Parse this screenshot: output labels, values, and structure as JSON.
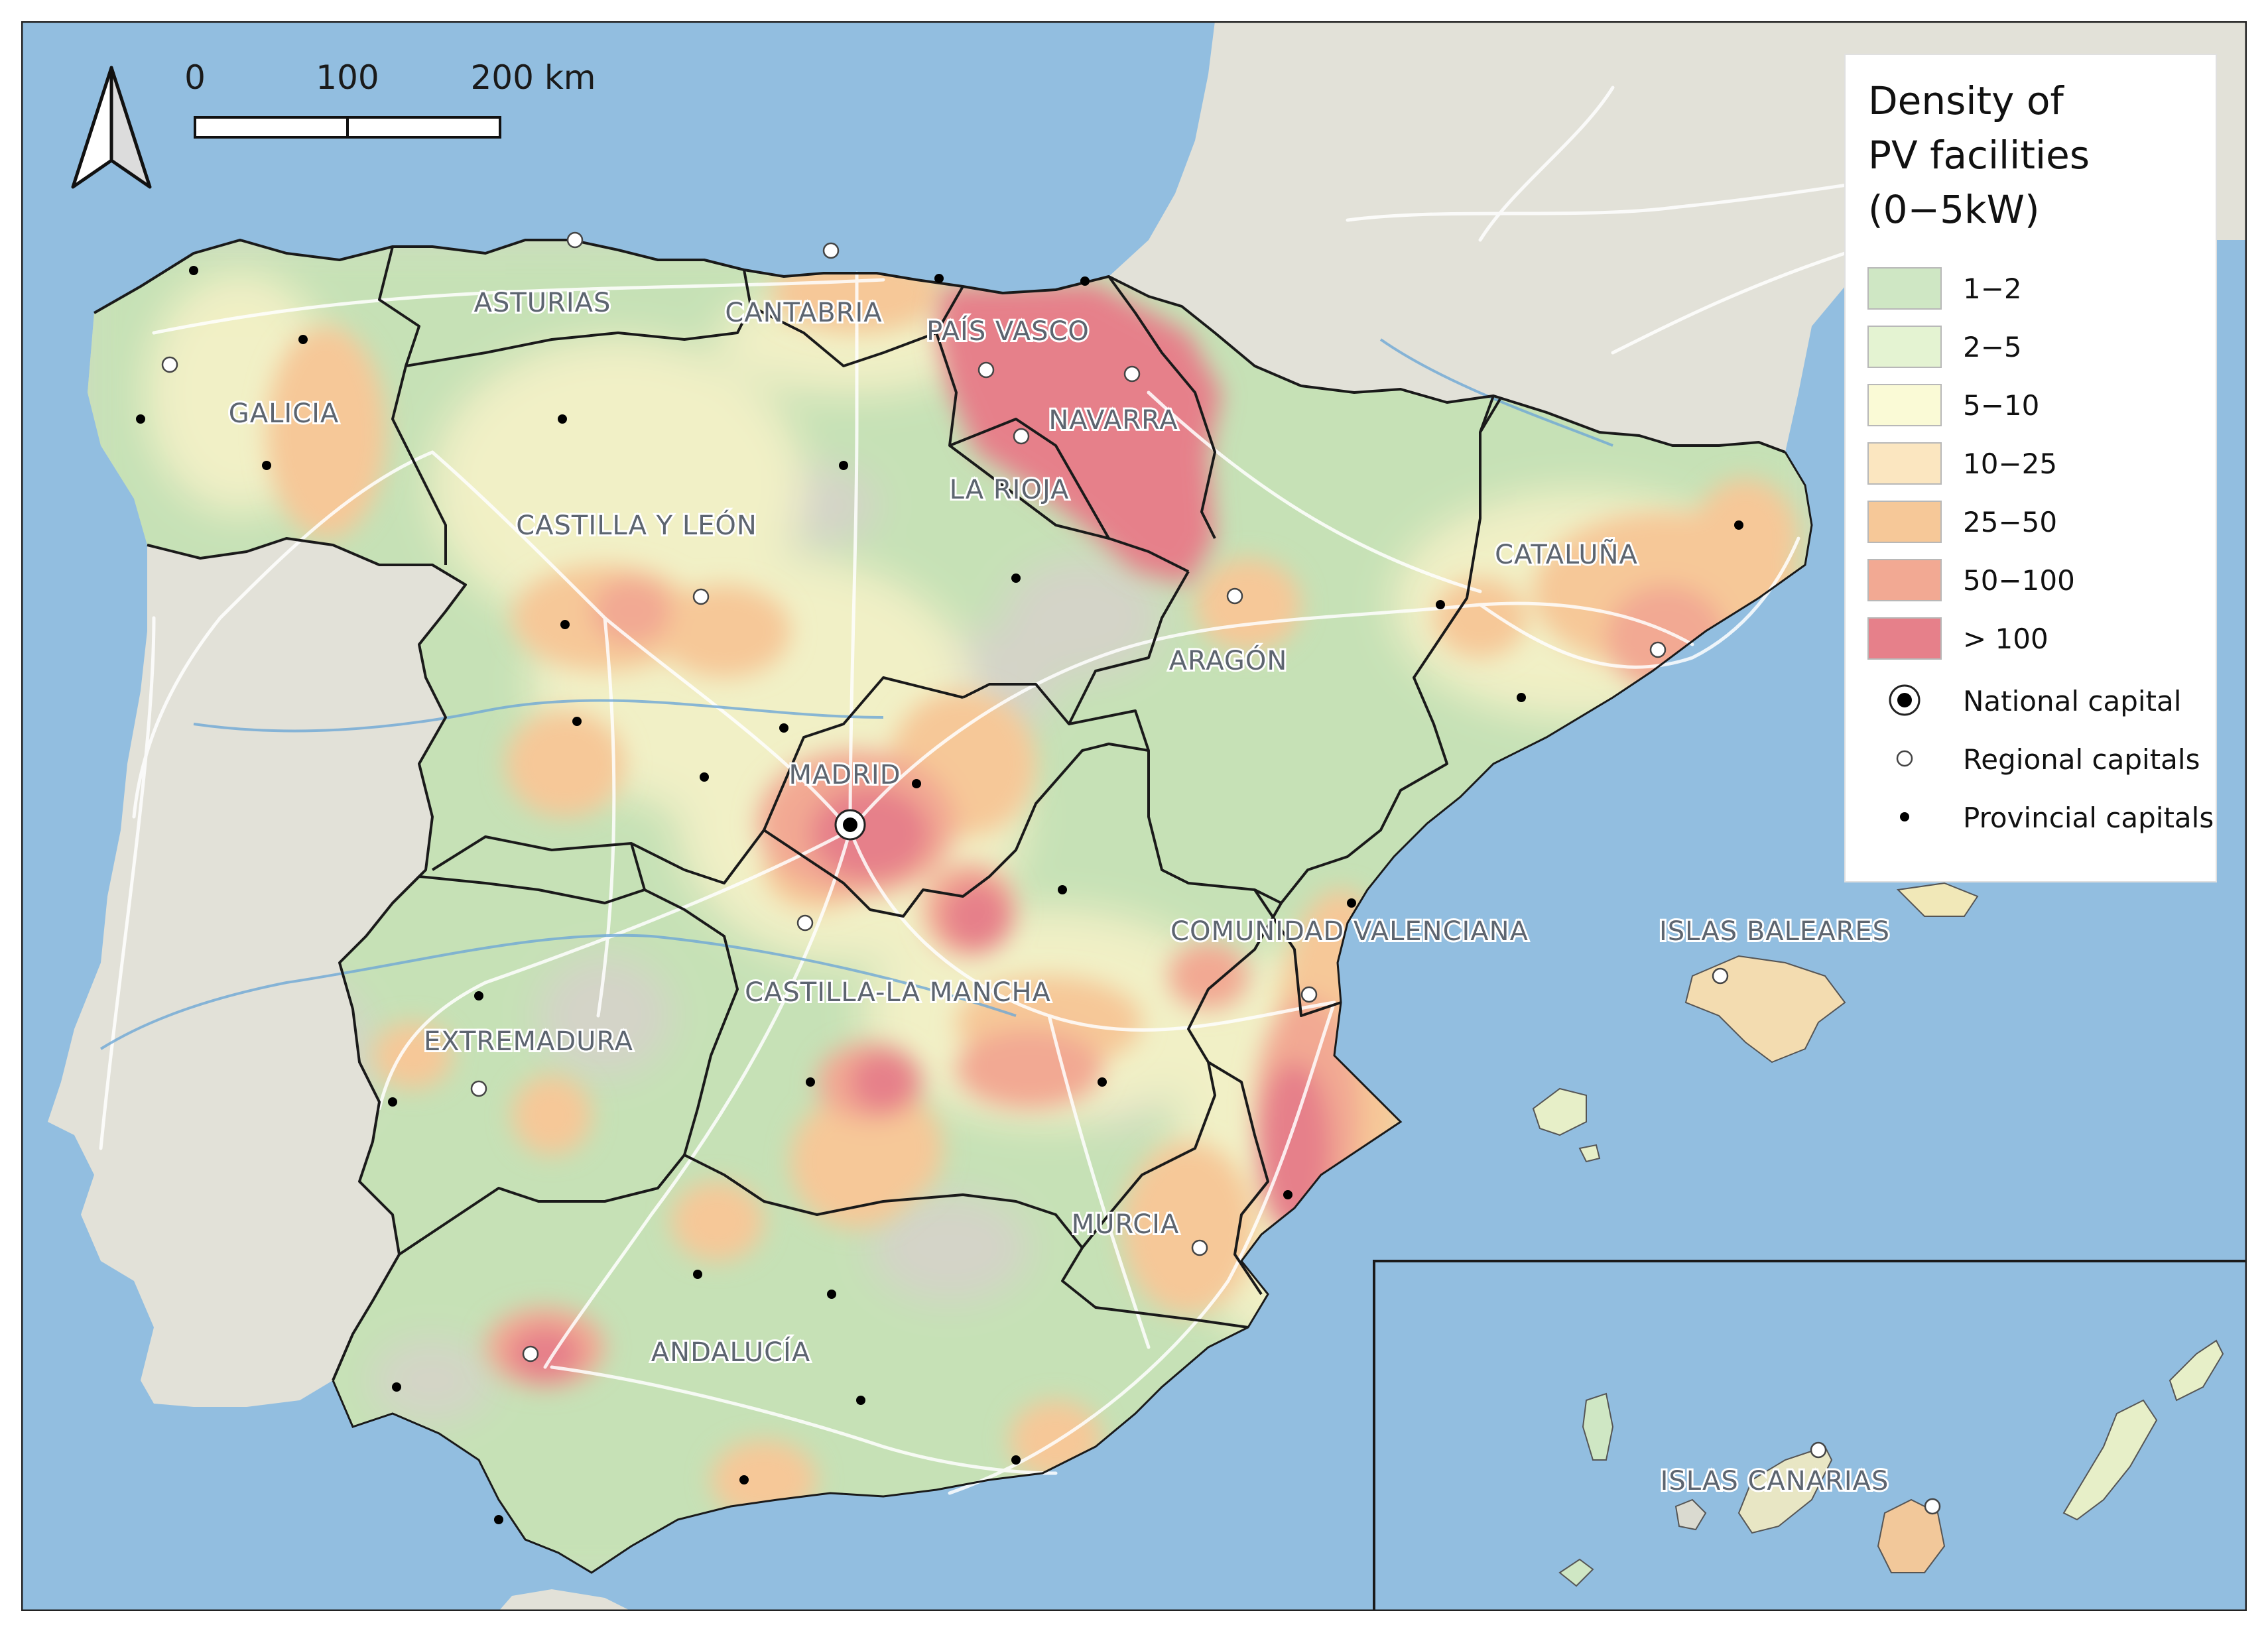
{
  "legend": {
    "title_lines": [
      "Density of",
      "PV facilities",
      "(0−5kW)"
    ],
    "classes": [
      {
        "label": "1−2",
        "color": "#cfe7c4"
      },
      {
        "label": "2−5",
        "color": "#e4f3d2"
      },
      {
        "label": "5−10",
        "color": "#fafad6"
      },
      {
        "label": "10−25",
        "color": "#fbe6c0"
      },
      {
        "label": "25−50",
        "color": "#f6c898"
      },
      {
        "label": "50−100",
        "color": "#f2a993"
      },
      {
        "label": "> 100",
        "color": "#e6808a"
      }
    ],
    "symbols": [
      {
        "label": "National capital",
        "symbol": "national-capital-icon"
      },
      {
        "label": "Regional capitals",
        "symbol": "regional-capital-icon"
      },
      {
        "label": "Provincial capitals",
        "symbol": "provincial-capital-icon"
      }
    ]
  },
  "scale_bar": {
    "labels": [
      "0",
      "100",
      "200 km"
    ]
  },
  "north_arrow": {
    "icon": "north-arrow-icon"
  },
  "regions": {
    "galicia": "GALICIA",
    "asturias": "ASTURIAS",
    "cantabria": "CANTABRIA",
    "pais_vasco": "PAÍS VASCO",
    "navarra": "NAVARRA",
    "la_rioja": "LA RIOJA",
    "castilla_leon": "CASTILLA Y LEÓN",
    "cataluna": "CATALUÑA",
    "aragon": "ARAGÓN",
    "madrid": "MADRID",
    "comunidad_valenciana": "COMUNIDAD VALENCIANA",
    "islas_baleares": "ISLAS BALEARES",
    "castilla_la_mancha": "CASTILLA-LA MANCHA",
    "extremadura": "EXTREMADURA",
    "murcia": "MURCIA",
    "andalucia": "ANDALUCÍA",
    "islas_canarias": "ISLAS CANARIAS"
  },
  "colors": {
    "sea": "#92bee0",
    "land_foreign": "#e2e1d8",
    "land_base": "#d4d4c8",
    "border": "#1a1a1a"
  }
}
